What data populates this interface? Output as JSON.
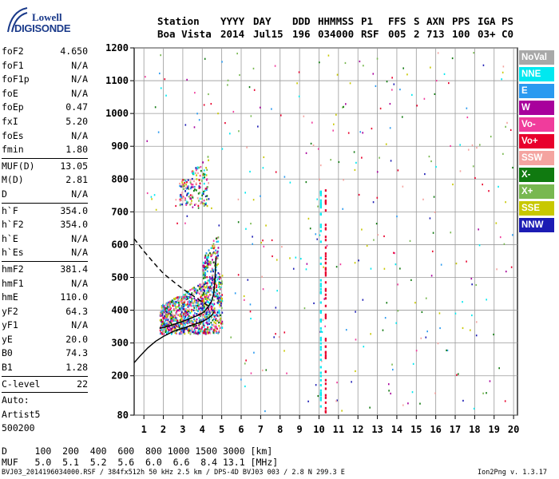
{
  "logo": {
    "line1": "Lowell",
    "line2": "DIGISONDE"
  },
  "header": {
    "row1": [
      "Station",
      "YYYY",
      "DAY",
      "DDD",
      "HHMMSS",
      "P1",
      "FFS",
      "S",
      "AXN",
      "PPS",
      "IGA",
      "PS"
    ],
    "row2": [
      "Boa Vista",
      "2014",
      "Jul15",
      "196",
      "034000",
      "RSF",
      "005",
      "2",
      "713",
      "100",
      "03+",
      "C0"
    ]
  },
  "params": {
    "group1": [
      {
        "k": "foF2",
        "v": "4.650"
      },
      {
        "k": "foF1",
        "v": "N/A"
      },
      {
        "k": "foF1p",
        "v": "N/A"
      },
      {
        "k": "foE",
        "v": "N/A"
      },
      {
        "k": "foEp",
        "v": "0.47"
      },
      {
        "k": "fxI",
        "v": "5.20"
      },
      {
        "k": "foEs",
        "v": "N/A"
      },
      {
        "k": "fmin",
        "v": "1.80"
      }
    ],
    "group2": [
      {
        "k": "MUF(D)",
        "v": "13.05"
      },
      {
        "k": "M(D)",
        "v": "2.81"
      },
      {
        "k": "D",
        "v": "N/A"
      }
    ],
    "group3": [
      {
        "k": "h`F",
        "v": "354.0"
      },
      {
        "k": "h`F2",
        "v": "354.0"
      },
      {
        "k": "h`E",
        "v": "N/A"
      },
      {
        "k": "h`Es",
        "v": "N/A"
      }
    ],
    "group4": [
      {
        "k": "hmF2",
        "v": "381.4"
      },
      {
        "k": "hmF1",
        "v": "N/A"
      },
      {
        "k": "hmE",
        "v": "110.0"
      },
      {
        "k": "yF2",
        "v": "64.3"
      },
      {
        "k": "yF1",
        "v": "N/A"
      },
      {
        "k": "yE",
        "v": "20.0"
      },
      {
        "k": "B0",
        "v": "74.3"
      },
      {
        "k": "B1",
        "v": "1.28"
      }
    ],
    "group5": [
      {
        "k": "C-level",
        "v": "22"
      }
    ],
    "auto": [
      "Auto:",
      "Artist5",
      "500200"
    ]
  },
  "legend": [
    {
      "label": "NoVal",
      "color": "#a8a8a8"
    },
    {
      "label": "NNE",
      "color": "#00e8f0"
    },
    {
      "label": "E",
      "color": "#2a9af0"
    },
    {
      "label": "W",
      "color": "#a8009c"
    },
    {
      "label": "Vo-",
      "color": "#f03c9c"
    },
    {
      "label": "Vo+",
      "color": "#e8002c"
    },
    {
      "label": "SSW",
      "color": "#f4a4a0"
    },
    {
      "label": "X-",
      "color": "#107a10"
    },
    {
      "label": "X+",
      "color": "#78b850"
    },
    {
      "label": "SSE",
      "color": "#c8c800"
    },
    {
      "label": "NNW",
      "color": "#1c1cb4"
    }
  ],
  "bottom": {
    "d_line": "D     100  200  400  600  800 1000 1500 3000 [km]",
    "muf_line": "MUF   5.0  5.1  5.2  5.6  6.0  6.6  8.4 13.1 [MHz]"
  },
  "footer": {
    "left": "BVJ03_2014196034000.RSF / 384fx512h 50 kHz 2.5 km / DPS-4D BVJ03 003 / 2.8 N 299.3 E",
    "right": "Ion2Png v. 1.3.17"
  },
  "chart_data": {
    "type": "scatter",
    "xlim": [
      0.5,
      20.2
    ],
    "ylim": [
      80,
      1200
    ],
    "x_ticks": [
      1,
      2,
      3,
      4,
      5,
      6,
      7,
      8,
      9,
      10,
      11,
      12,
      13,
      14,
      15,
      16,
      17,
      18,
      19,
      20
    ],
    "y_ticks": [
      80,
      200,
      300,
      400,
      500,
      600,
      700,
      800,
      900,
      1000,
      1100,
      1200
    ],
    "grid": true,
    "traces": [
      {
        "name": "profile",
        "style": "solid",
        "x": [
          0.5,
          0.8,
          1.2,
          1.6,
          2.0,
          2.5,
          3.0,
          3.5,
          4.0,
          4.3,
          4.5,
          4.6
        ],
        "y": [
          240,
          260,
          285,
          305,
          320,
          335,
          345,
          355,
          365,
          375,
          385,
          395
        ]
      },
      {
        "name": "virtual_height",
        "style": "solid",
        "x": [
          1.8,
          2.2,
          2.6,
          3.0,
          3.4,
          3.8,
          4.1,
          4.3,
          4.5,
          4.6,
          4.65,
          4.7
        ],
        "y": [
          345,
          350,
          358,
          366,
          375,
          385,
          395,
          410,
          430,
          455,
          490,
          560
        ]
      },
      {
        "name": "extrapolation",
        "style": "dashed",
        "x": [
          0.5,
          1.0,
          1.5,
          2.0,
          2.5,
          3.0,
          3.5,
          4.0,
          4.4
        ],
        "y": [
          618,
          580,
          545,
          512,
          488,
          465,
          445,
          425,
          410
        ]
      }
    ],
    "echo_clusters": [
      {
        "x": [
          1.8,
          5.0
        ],
        "y": [
          330,
          520
        ],
        "n": 1100
      },
      {
        "x": [
          2.8,
          4.3
        ],
        "y": [
          720,
          880
        ],
        "n": 160
      },
      {
        "x": [
          4.0,
          4.8
        ],
        "y": [
          500,
          640
        ],
        "n": 120
      }
    ]
  }
}
